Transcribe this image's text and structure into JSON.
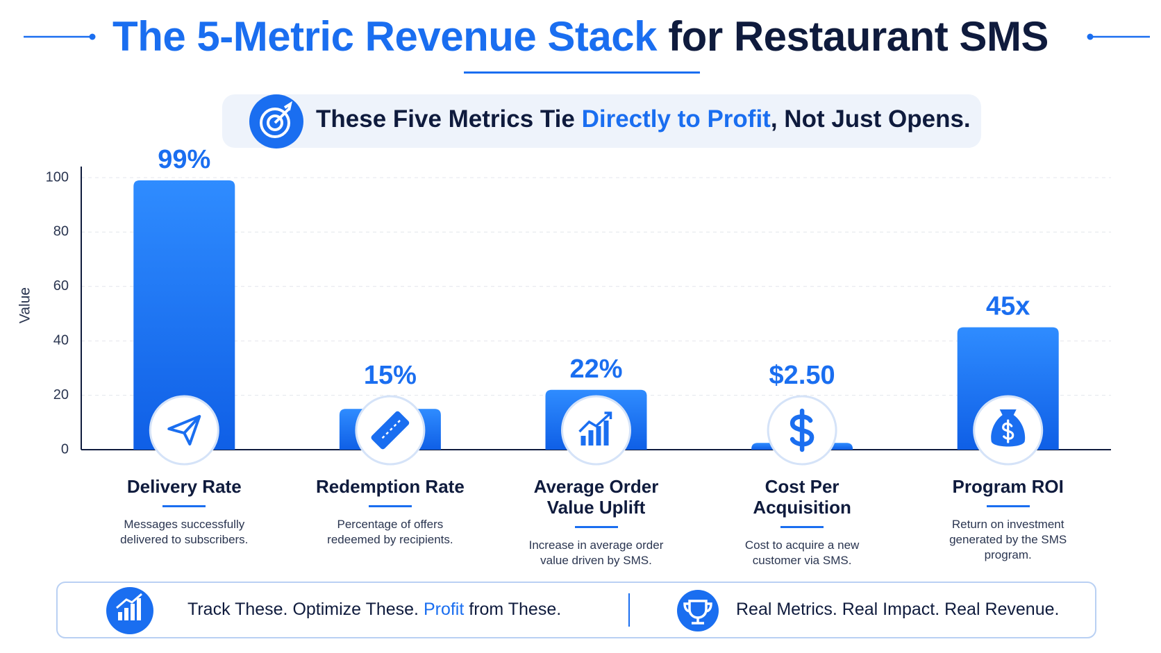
{
  "header": {
    "title_highlight": "The 5-Metric Revenue Stack",
    "title_rest": "for Restaurant SMS"
  },
  "subtitle": {
    "parts": [
      "These Five Metrics Tie ",
      "Directly to Profit",
      ", Not Just Opens."
    ]
  },
  "chart_data": {
    "type": "bar",
    "y_label": "Value",
    "categories": [
      "Delivery Rate",
      "Redemption Rate",
      "Average Order Value Uplift",
      "Cost Per Acquisition",
      "Program ROI"
    ],
    "values": [
      99,
      15,
      22,
      2.5,
      45
    ],
    "value_labels": [
      "99%",
      "15%",
      "22%",
      "$2.50",
      "45x"
    ],
    "descriptions": [
      "Messages successfully delivered to subscribers.",
      "Percentage of offers redeemed by recipients.",
      "Increase in average order value driven by SMS.",
      "Cost to acquire a new customer via SMS.",
      "Return on investment generated by the SMS program."
    ],
    "color": "#1a6ef0",
    "ylim": [
      0,
      100
    ],
    "yticks": [
      0,
      20,
      40,
      60,
      80,
      100
    ],
    "grid": true
  },
  "footer": {
    "left": [
      "Track These. Optimize These. ",
      "Profit",
      " from These."
    ],
    "right": "Real Metrics. Real Impact. Real Revenue."
  }
}
